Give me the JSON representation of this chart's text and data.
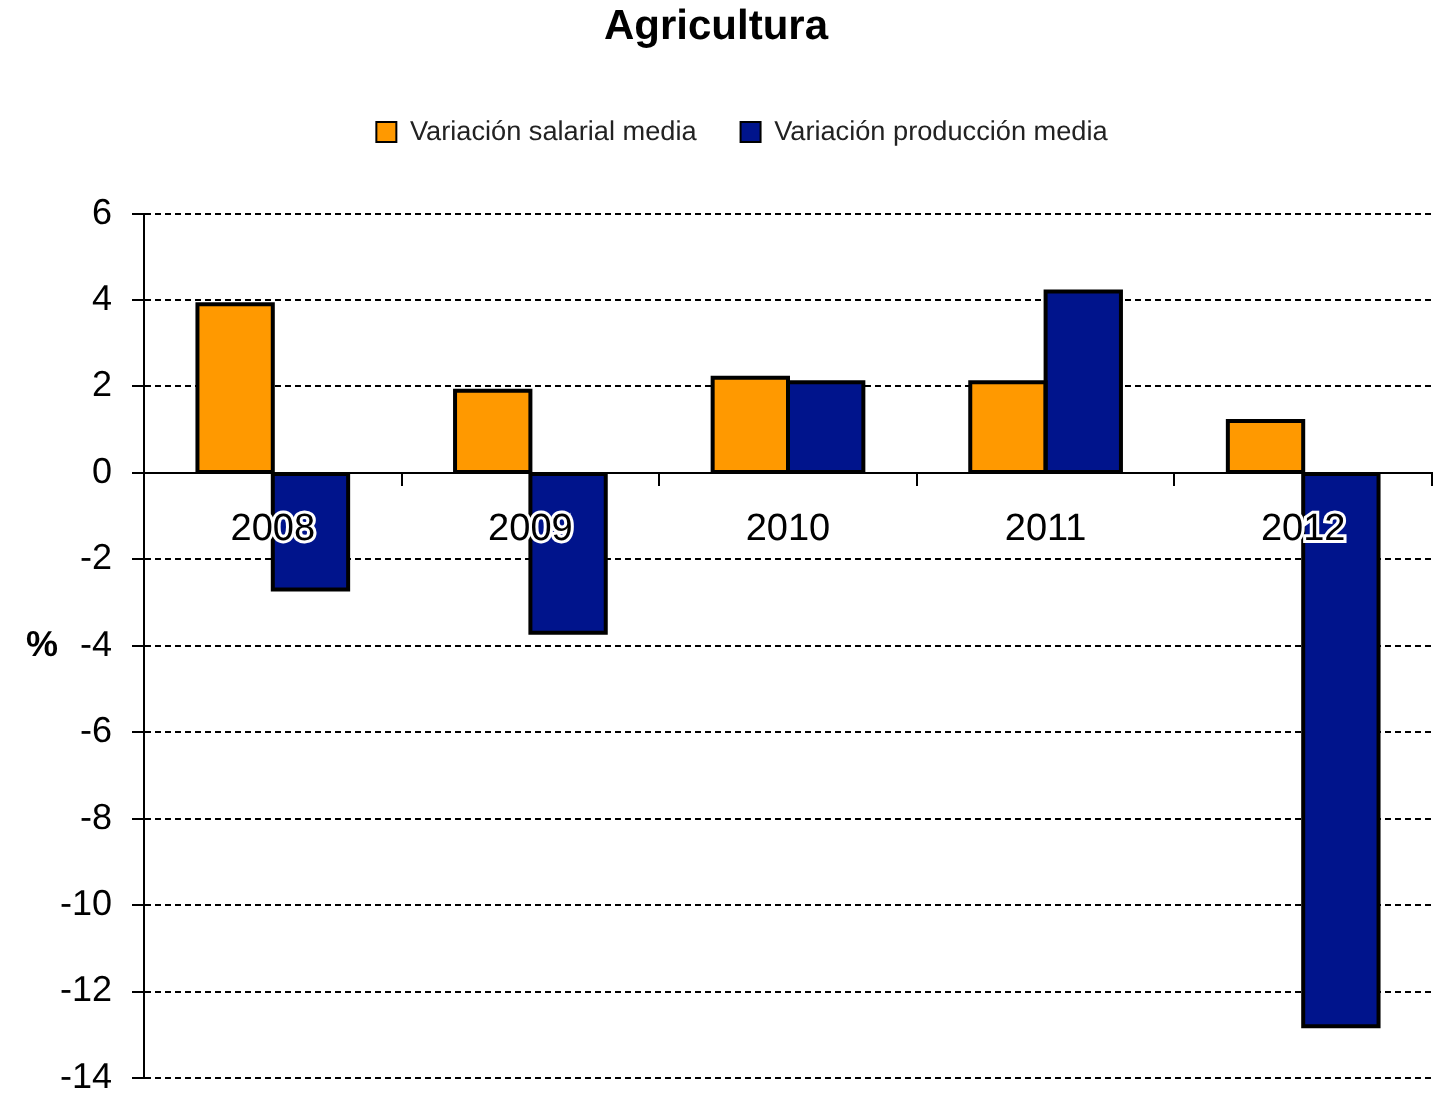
{
  "chart_data": {
    "type": "bar",
    "title": "Agricultura",
    "ylabel": "%",
    "categories": [
      "2008",
      "2009",
      "2010",
      "2011",
      "2012"
    ],
    "series": [
      {
        "name": "Variación salarial media",
        "color": "#ff9900",
        "values": [
          3.9,
          1.9,
          2.2,
          2.1,
          1.2
        ]
      },
      {
        "name": "Variación producción media",
        "color": "#00148c",
        "values": [
          -2.7,
          -3.7,
          2.1,
          4.2,
          -12.8
        ]
      }
    ],
    "ylim": [
      -14,
      6
    ],
    "yticks": [
      -14,
      -12,
      -10,
      -8,
      -6,
      -4,
      -2,
      0,
      2,
      4,
      6
    ],
    "grid": "y",
    "legend": "top"
  }
}
